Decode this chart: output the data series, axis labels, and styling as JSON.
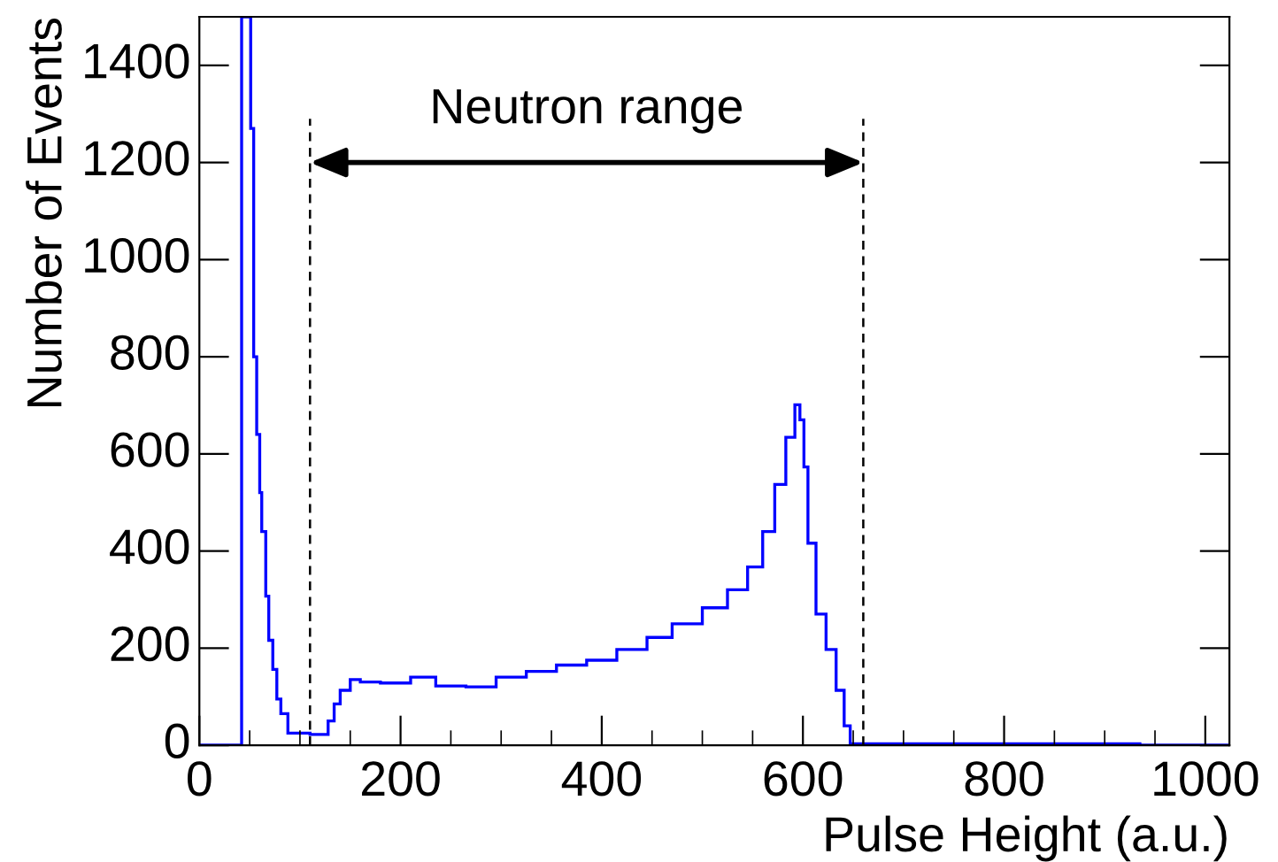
{
  "chart_data": {
    "type": "histogram",
    "xlabel": "Pulse Height (a.u.)",
    "ylabel": "Number of Events",
    "color": "#0000ff",
    "bins": [
      0,
      42,
      51,
      54,
      57,
      60,
      62,
      66,
      69,
      73,
      77,
      81,
      88,
      110,
      128,
      134,
      140,
      150,
      160,
      180,
      210,
      235,
      265,
      295,
      325,
      355,
      385,
      415,
      445,
      470,
      500,
      525,
      545,
      560,
      572,
      583,
      592,
      597,
      601,
      605,
      613,
      623,
      633,
      641,
      647,
      935,
      1024
    ],
    "values": [
      0,
      1500,
      1270,
      800,
      640,
      520,
      440,
      307,
      216,
      156,
      95,
      65,
      25,
      22,
      50,
      85,
      113,
      135,
      130,
      128,
      140,
      122,
      120,
      140,
      152,
      165,
      175,
      197,
      222,
      250,
      283,
      320,
      367,
      440,
      537,
      634,
      701,
      670,
      573,
      416,
      270,
      197,
      113,
      40,
      3,
      0
    ],
    "xlim": [
      0,
      1024
    ],
    "ylim": [
      0,
      1500
    ],
    "xticks": [
      0,
      200,
      400,
      600,
      800,
      1000
    ],
    "yticks": [
      0,
      200,
      400,
      600,
      800,
      1000,
      1200,
      1400
    ],
    "ref_lines": [
      {
        "axis": "x",
        "value": 110,
        "color": "#000000",
        "line_style": "dashed"
      },
      {
        "axis": "x",
        "value": 660,
        "color": "#000000",
        "line_style": "dashed"
      }
    ],
    "annotations": [
      "Neutron range"
    ],
    "grid": false,
    "legend": false
  }
}
